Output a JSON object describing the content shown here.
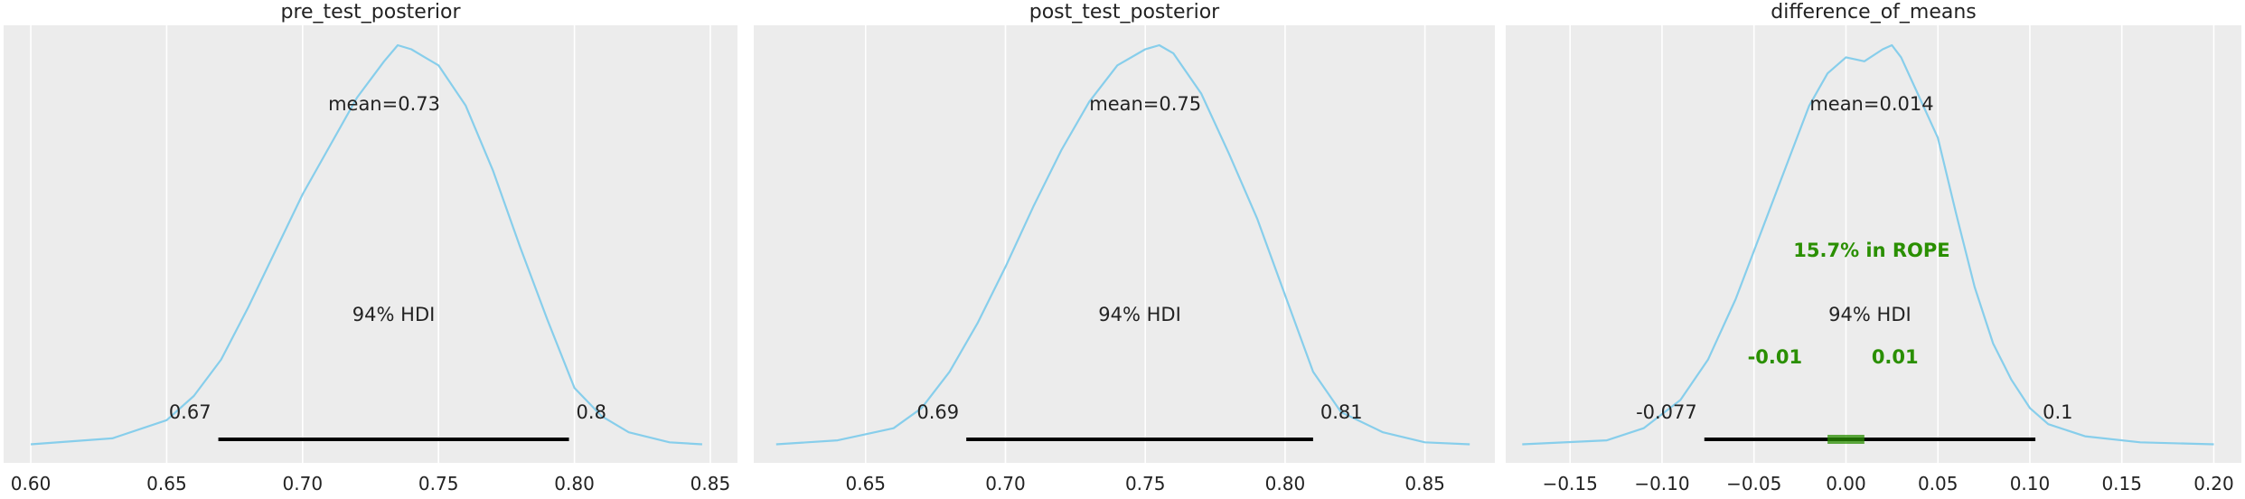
{
  "chart_data": [
    {
      "type": "area",
      "title": "pre_test_posterior",
      "xlim": [
        0.59,
        0.86
      ],
      "xticks": [
        0.6,
        0.65,
        0.7,
        0.75,
        0.8,
        0.85
      ],
      "xtick_labels": [
        "0.60",
        "0.65",
        "0.70",
        "0.75",
        "0.80",
        "0.85"
      ],
      "grid": true,
      "mean": 0.73,
      "mean_label": "mean=0.73",
      "hdi": {
        "prob_label": "94% HDI",
        "low": 0.669,
        "high": 0.798,
        "low_label": "0.67",
        "high_label": "0.8"
      },
      "density": {
        "x": [
          0.6,
          0.63,
          0.65,
          0.66,
          0.67,
          0.68,
          0.69,
          0.7,
          0.71,
          0.72,
          0.73,
          0.735,
          0.74,
          0.745,
          0.75,
          0.76,
          0.77,
          0.78,
          0.79,
          0.8,
          0.81,
          0.82,
          0.835,
          0.847
        ],
        "y": [
          0.01,
          0.025,
          0.07,
          0.13,
          0.22,
          0.35,
          0.49,
          0.63,
          0.75,
          0.87,
          0.96,
          1.0,
          0.99,
          0.97,
          0.95,
          0.85,
          0.69,
          0.5,
          0.32,
          0.15,
          0.08,
          0.04,
          0.015,
          0.01
        ]
      }
    },
    {
      "type": "area",
      "title": "post_test_posterior",
      "xlim": [
        0.61,
        0.875
      ],
      "xticks": [
        0.65,
        0.7,
        0.75,
        0.8,
        0.85
      ],
      "xtick_labels": [
        "0.65",
        "0.70",
        "0.75",
        "0.80",
        "0.85"
      ],
      "grid": true,
      "mean": 0.75,
      "mean_label": "mean=0.75",
      "hdi": {
        "prob_label": "94% HDI",
        "low": 0.686,
        "high": 0.81,
        "low_label": "0.69",
        "high_label": "0.81"
      },
      "density": {
        "x": [
          0.618,
          0.64,
          0.66,
          0.67,
          0.68,
          0.69,
          0.7,
          0.71,
          0.72,
          0.73,
          0.74,
          0.75,
          0.755,
          0.76,
          0.77,
          0.78,
          0.79,
          0.8,
          0.81,
          0.82,
          0.835,
          0.85,
          0.866
        ],
        "y": [
          0.01,
          0.02,
          0.05,
          0.1,
          0.19,
          0.31,
          0.45,
          0.6,
          0.74,
          0.86,
          0.95,
          0.99,
          1.0,
          0.98,
          0.88,
          0.73,
          0.57,
          0.38,
          0.19,
          0.09,
          0.04,
          0.015,
          0.01
        ]
      }
    },
    {
      "type": "area",
      "title": "difference_of_means",
      "xlim": [
        -0.185,
        0.215
      ],
      "xticks": [
        -0.15,
        -0.1,
        -0.05,
        0.0,
        0.05,
        0.1,
        0.15,
        0.2
      ],
      "xtick_labels": [
        "−0.15",
        "−0.10",
        "−0.05",
        "0.00",
        "0.05",
        "0.10",
        "0.15",
        "0.20"
      ],
      "grid": true,
      "mean": 0.014,
      "mean_label": "mean=0.014",
      "hdi": {
        "prob_label": "94% HDI",
        "low": -0.077,
        "high": 0.103,
        "low_label": "-0.077",
        "high_label": "0.1"
      },
      "rope": {
        "low": -0.01,
        "high": 0.01,
        "low_label": "-0.01",
        "high_label": "0.01",
        "label": "15.7% in ROPE",
        "color": "#2a8f00"
      },
      "density": {
        "x": [
          -0.176,
          -0.13,
          -0.11,
          -0.09,
          -0.075,
          -0.06,
          -0.045,
          -0.03,
          -0.02,
          -0.01,
          0.0,
          0.01,
          0.02,
          0.025,
          0.03,
          0.04,
          0.05,
          0.06,
          0.07,
          0.08,
          0.09,
          0.1,
          0.11,
          0.13,
          0.16,
          0.2
        ],
        "y": [
          0.01,
          0.02,
          0.05,
          0.12,
          0.22,
          0.37,
          0.55,
          0.73,
          0.85,
          0.93,
          0.97,
          0.96,
          0.99,
          1.0,
          0.97,
          0.87,
          0.77,
          0.58,
          0.4,
          0.26,
          0.17,
          0.1,
          0.06,
          0.03,
          0.015,
          0.01
        ]
      }
    }
  ],
  "colors": {
    "line": "#87ceeb",
    "panel_bg": "#ececec",
    "grid": "#ffffff",
    "hdi": "#000000",
    "text": "#222222",
    "rope": "#2a8f00"
  }
}
